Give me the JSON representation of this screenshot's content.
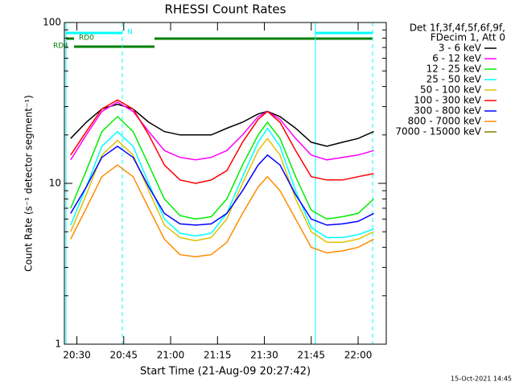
{
  "chart_data": {
    "type": "line",
    "title": "RHESSI Count Rates",
    "x_label": "Start Time (21-Aug-09 20:27:42)",
    "y_label": "Count Rate (s⁻¹ detector segment⁻¹)",
    "footer": "15-Oct-2021 14:45",
    "legend_title": [
      "Det 1f,3f,4f,5f,6f,9f,",
      "FDecim 1, Att 0"
    ],
    "flags": [
      "N",
      "RD0",
      "RD4"
    ],
    "log_y": true,
    "xlim": [
      "20:26",
      "22:09"
    ],
    "xticks": [
      "20:30",
      "20:45",
      "21:00",
      "21:15",
      "21:30",
      "21:45",
      "22:00"
    ],
    "ylim": [
      1,
      100
    ],
    "yticks": [
      1,
      10,
      100
    ],
    "x": [
      "20:28",
      "20:33",
      "20:38",
      "20:43",
      "20:48",
      "20:53",
      "20:58",
      "21:03",
      "21:08",
      "21:13",
      "21:18",
      "21:23",
      "21:28",
      "21:31",
      "21:35",
      "21:40",
      "21:45",
      "21:50",
      "21:55",
      "22:00",
      "22:05"
    ],
    "series": [
      {
        "name": "3 - 6 keV",
        "color": "#000000",
        "values": [
          19,
          24,
          29,
          31,
          29,
          24,
          21,
          20,
          20,
          20,
          22,
          24,
          27,
          28,
          26,
          22,
          18,
          17,
          18,
          19,
          21
        ]
      },
      {
        "name": "6 - 12 keV",
        "color": "#ff00ff",
        "values": [
          14,
          20,
          28,
          32,
          28,
          21,
          16,
          14.5,
          14,
          14.5,
          16,
          20,
          26,
          28,
          25,
          19,
          15,
          14,
          14.5,
          15,
          16
        ]
      },
      {
        "name": "12 - 25 keV",
        "color": "#00ee00",
        "values": [
          7,
          12,
          21,
          26,
          21,
          13,
          8,
          6.3,
          6,
          6.2,
          8,
          13,
          20,
          24,
          19,
          11,
          6.8,
          6,
          6.2,
          6.5,
          8
        ]
      },
      {
        "name": "25 - 50 keV",
        "color": "#00ffff",
        "values": [
          5.5,
          9.5,
          17,
          21,
          17,
          10,
          6,
          4.9,
          4.7,
          4.9,
          6.5,
          11,
          18,
          22,
          17,
          9,
          5.3,
          4.6,
          4.6,
          4.8,
          5.2
        ]
      },
      {
        "name": "50 - 100 keV",
        "color": "#e0c000",
        "values": [
          5,
          8.5,
          15,
          18.5,
          15,
          9,
          5.5,
          4.6,
          4.4,
          4.6,
          6,
          10,
          16,
          19,
          15,
          8,
          5,
          4.3,
          4.3,
          4.5,
          5
        ]
      },
      {
        "name": "100 - 300 keV",
        "color": "#ff0000",
        "values": [
          15,
          21,
          29,
          33,
          29,
          20,
          13,
          10.5,
          10,
          10.5,
          12,
          18,
          25,
          28,
          24,
          16,
          11,
          10.5,
          10.5,
          11,
          11.5
        ]
      },
      {
        "name": "300 - 800 keV",
        "color": "#0000ff",
        "values": [
          6.5,
          9.5,
          14.5,
          17,
          14.5,
          9.5,
          6.5,
          5.6,
          5.5,
          5.6,
          6.5,
          9,
          13,
          15,
          13,
          8.5,
          6,
          5.5,
          5.6,
          5.8,
          6.5
        ]
      },
      {
        "name": "800 - 7000 keV",
        "color": "#ff8c00",
        "values": [
          4.5,
          7,
          11,
          13,
          11,
          7,
          4.5,
          3.6,
          3.5,
          3.6,
          4.3,
          6.5,
          9.5,
          11,
          9,
          6,
          4,
          3.7,
          3.8,
          4,
          4.5
        ]
      },
      {
        "name": "7000 - 15000 keV",
        "color": "#808000",
        "values": [
          null,
          null,
          null,
          null,
          null,
          null,
          null,
          null,
          null,
          null,
          null,
          null,
          null,
          null,
          null,
          null,
          null,
          null,
          null,
          null,
          null
        ]
      }
    ]
  }
}
